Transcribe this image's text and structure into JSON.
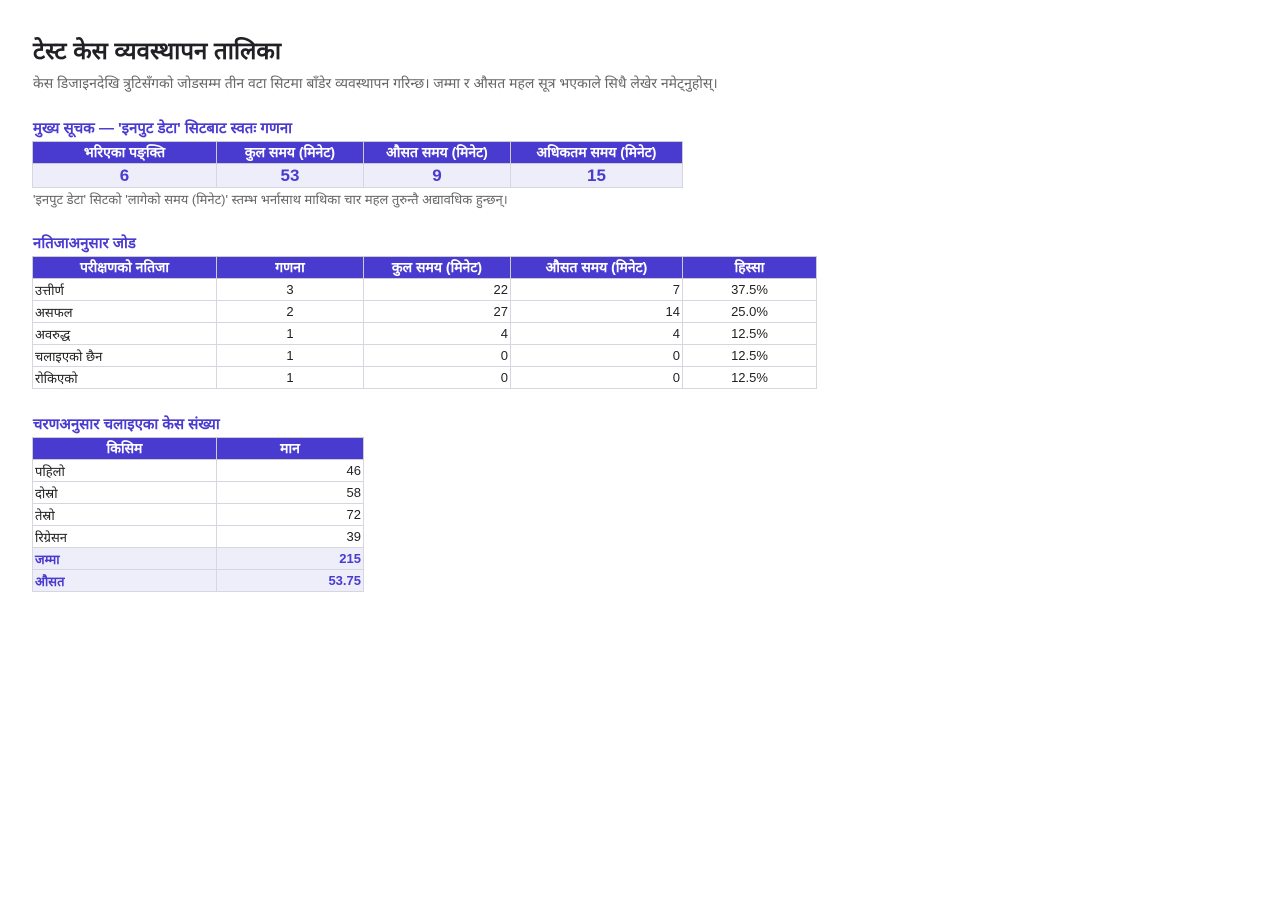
{
  "header": {
    "title": "टेस्ट केस व्यवस्थापन तालिका",
    "subtitle": "केस डिजाइनदेखि त्रुटिसँगको जोडसम्म तीन वटा सिटमा बाँडेर व्यवस्थापन गरिन्छ। जम्मा र औसत महल सूत्र भएकाले सिधै लेखेर नमेट्नुहोस्।"
  },
  "kpi": {
    "heading": "मुख्य सूचक — 'इनपुट डेटा' सिटबाट स्वतः गणना",
    "columns": [
      "भरिएका पङ्क्ति",
      "कुल समय (मिनेट)",
      "औसत समय (मिनेट)",
      "अधिकतम समय (मिनेट)"
    ],
    "values": [
      6,
      53,
      9,
      15
    ],
    "note": "'इनपुट डेटा' सिटको 'लागेको समय (मिनेट)' स्तम्भ भर्नासाथ माथिका चार महल तुरुन्तै अद्यावधिक हुन्छन्।"
  },
  "results": {
    "heading": "नतिजाअनुसार जोड",
    "columns": [
      "परीक्षणको नतिजा",
      "गणना",
      "कुल समय (मिनेट)",
      "औसत समय (मिनेट)",
      "हिस्सा"
    ],
    "rows": [
      [
        "उत्तीर्ण",
        3,
        22,
        7,
        "37.5%"
      ],
      [
        "असफल",
        2,
        27,
        14,
        "25.0%"
      ],
      [
        "अवरुद्ध",
        1,
        4,
        4,
        "12.5%"
      ],
      [
        "चलाइएको छैन",
        1,
        0,
        0,
        "12.5%"
      ],
      [
        "रोकिएको",
        1,
        0,
        0,
        "12.5%"
      ]
    ]
  },
  "phases": {
    "heading": "चरणअनुसार चलाइएका केस संख्या",
    "columns": [
      "किसिम",
      "मान"
    ],
    "rows": [
      [
        "पहिलो",
        46
      ],
      [
        "दोस्रो",
        58
      ],
      [
        "तेस्रो",
        72
      ],
      [
        "रिग्रेसन",
        39
      ]
    ],
    "summary": [
      [
        "जम्मा",
        215
      ],
      [
        "औसत",
        53.75
      ]
    ]
  }
}
